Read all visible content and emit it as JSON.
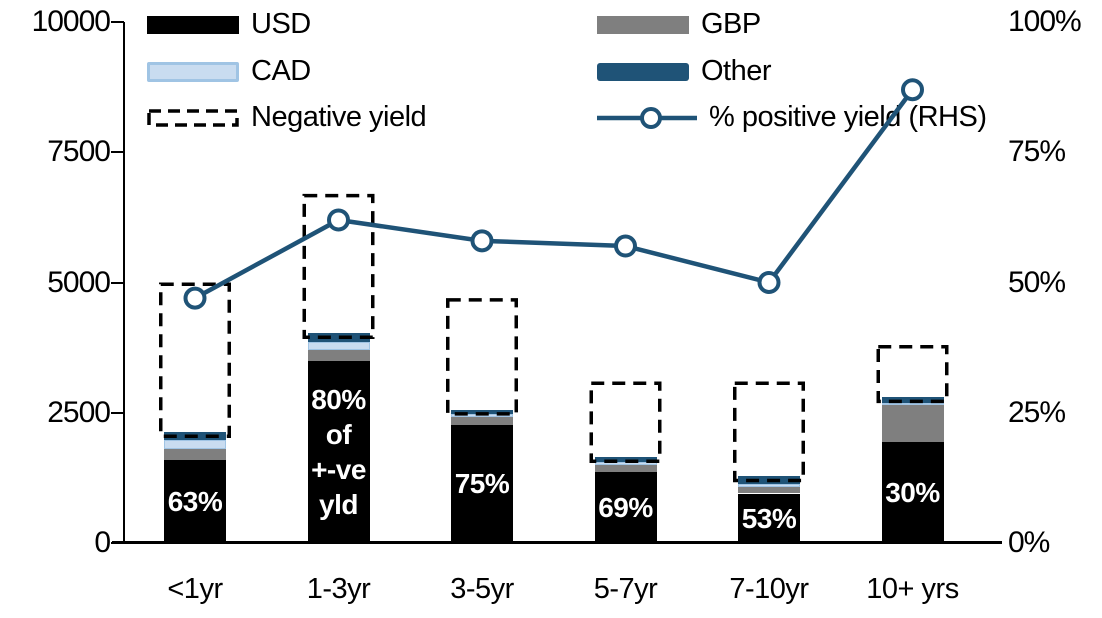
{
  "colors": {
    "usd": "#000000",
    "gbp": "#7F7F7F",
    "cad_fill": "#C9DCF0",
    "cad_border": "#A0C4E4",
    "other": "#1F5377",
    "line": "#1F5377",
    "negative_outline": "#000000",
    "axis": "#000000",
    "bar_label_text": "#FFFFFF"
  },
  "legend": {
    "usd": "USD",
    "gbp": "GBP",
    "cad": "CAD",
    "other": "Other",
    "negative": "Negative yield",
    "line": "% positive yield (RHS)"
  },
  "axes": {
    "left_ticks": [
      "0",
      "2500",
      "5000",
      "7500",
      "10000"
    ],
    "right_ticks": [
      "0%",
      "25%",
      "50%",
      "75%",
      "100%"
    ],
    "left_range": [
      0,
      10000
    ],
    "right_range": [
      0,
      100
    ]
  },
  "chart_data": {
    "type": "bar",
    "subtype": "stacked-bar-with-dashed-outline-and-line-combo",
    "categories": [
      "<1yr",
      "1-3yr",
      "3-5yr",
      "5-7yr",
      "7-10yr",
      "10+ yrs"
    ],
    "series": [
      {
        "name": "USD",
        "type": "bar",
        "stack": "currencies",
        "values": [
          1600,
          3500,
          2270,
          1370,
          950,
          1940
        ]
      },
      {
        "name": "GBP",
        "type": "bar",
        "stack": "currencies",
        "values": [
          200,
          210,
          140,
          120,
          130,
          700
        ]
      },
      {
        "name": "CAD",
        "type": "bar",
        "stack": "currencies",
        "values": [
          180,
          150,
          60,
          60,
          60,
          50
        ]
      },
      {
        "name": "Other",
        "type": "bar",
        "stack": "currencies",
        "values": [
          150,
          170,
          90,
          100,
          140,
          110
        ]
      },
      {
        "name": "Negative yield",
        "type": "outline-bar",
        "values": [
          5000,
          6700,
          4700,
          3100,
          3100,
          3800
        ],
        "note": "top of dashed box on left axis; box spans from top of currency stack to this value"
      },
      {
        "name": "% positive yield (RHS)",
        "type": "line",
        "axis": "right",
        "values": [
          47,
          62,
          58,
          57,
          50,
          87
        ]
      }
    ],
    "bar_labels": [
      "63%",
      "80%\nof\n+-ve\nyld",
      "75%",
      "69%",
      "53%",
      "30%"
    ],
    "ylim_left": [
      0,
      10000
    ],
    "ylim_right": [
      0,
      100
    ],
    "grid": false,
    "legend_position": "top-inside"
  }
}
